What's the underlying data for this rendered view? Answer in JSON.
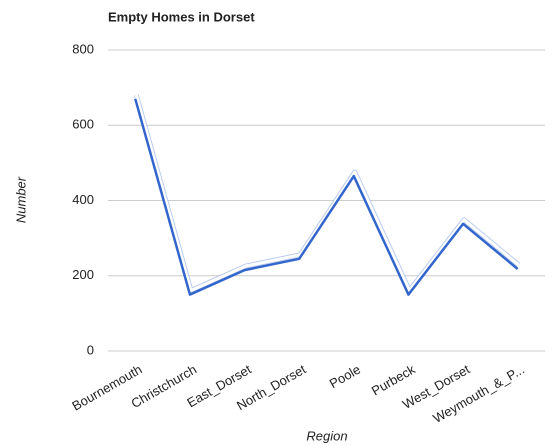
{
  "chart_data": {
    "type": "line",
    "title": "Empty Homes in Dorset",
    "x_label": "Region",
    "y_label": "Number",
    "categories": [
      "Bournemouth",
      "Christchurch",
      "East_Dorset",
      "North_Dorset",
      "Poole",
      "Purbeck",
      "West_Dorset",
      "Weymouth_&_P..."
    ],
    "series": [
      {
        "name": "Number",
        "color": "#3366cc",
        "values": [
          670,
          150,
          215,
          245,
          465,
          150,
          338,
          218
        ]
      }
    ],
    "ylim": [
      0,
      800
    ],
    "yticks": [
      0,
      200,
      400,
      600,
      800
    ],
    "grid": true
  }
}
